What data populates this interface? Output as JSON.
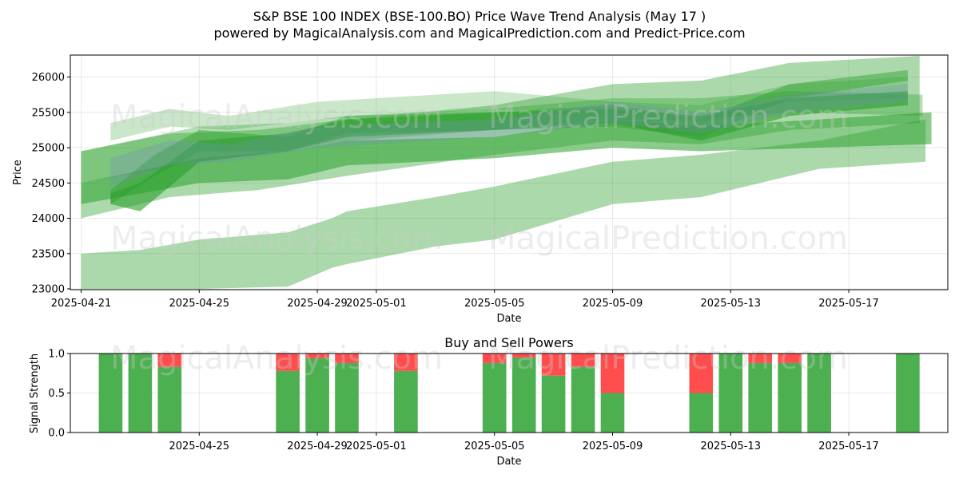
{
  "header": {
    "title": "S&P BSE 100 INDEX (BSE-100.BO) Price Wave Trend Analysis (May 17 )",
    "subtitle": "powered by MagicalAnalysis.com and MagicalPrediction.com and Predict-Price.com"
  },
  "watermarks": {
    "left": "MagicalAnalysis.com",
    "right": "MagicalPrediction.com"
  },
  "colors": {
    "band_green": "#2ca02c",
    "band_blue": "#6f8fb8",
    "buy": "#4caf50",
    "sell": "#ff4d4d"
  },
  "chart_data": [
    {
      "type": "area",
      "title": "",
      "xlabel": "Date",
      "ylabel": "Price",
      "x_start": "2025-04-21",
      "x_end": "2025-05-20",
      "ylim": [
        23000,
        26300
      ],
      "x_ticks": [
        "2025-04-21",
        "2025-04-25",
        "2025-04-29",
        "2025-05-01",
        "2025-05-05",
        "2025-05-09",
        "2025-05-13",
        "2025-05-17"
      ],
      "y_ticks": [
        23000,
        23500,
        24000,
        24500,
        25000,
        25500,
        26000
      ],
      "grid": true,
      "series": [
        {
          "upper": [
            [
              0.0,
              24950
            ],
            [
              4.0,
              25300
            ],
            [
              7.0,
              25350
            ],
            [
              9.0,
              25450
            ],
            [
              14.0,
              25550
            ],
            [
              18.0,
              25700
            ],
            [
              21.0,
              25700
            ],
            [
              24.0,
              25800
            ],
            [
              28.5,
              25750
            ]
          ],
          "lower": [
            [
              0.0,
              24500
            ],
            [
              4.0,
              24800
            ],
            [
              7.0,
              24950
            ],
            [
              9.0,
              25100
            ],
            [
              14.0,
              25250
            ],
            [
              18.0,
              25400
            ],
            [
              21.0,
              25400
            ],
            [
              24.0,
              25500
            ],
            [
              28.5,
              25450
            ]
          ],
          "opacity": 0.35
        },
        {
          "upper": [
            [
              0.0,
              24500
            ],
            [
              4.0,
              24850
            ],
            [
              7.0,
              24950
            ],
            [
              9.0,
              25100
            ],
            [
              14.0,
              25150
            ],
            [
              18.0,
              25400
            ],
            [
              21.0,
              25300
            ],
            [
              25.0,
              25400
            ],
            [
              28.8,
              25500
            ]
          ],
          "lower": [
            [
              0.0,
              24200
            ],
            [
              4.0,
              24500
            ],
            [
              7.0,
              24550
            ],
            [
              9.0,
              24750
            ],
            [
              14.0,
              24850
            ],
            [
              18.0,
              25000
            ],
            [
              21.0,
              24950
            ],
            [
              25.0,
              25000
            ],
            [
              28.8,
              25050
            ]
          ],
          "opacity": 0.55
        },
        {
          "upper": [
            [
              0.0,
              23500
            ],
            [
              2.0,
              23550
            ],
            [
              4.0,
              23700
            ],
            [
              7.0,
              23800
            ],
            [
              8.5,
              24000
            ],
            [
              9.0,
              24100
            ],
            [
              12.0,
              24300
            ],
            [
              14.0,
              24450
            ],
            [
              18.0,
              24800
            ],
            [
              21.0,
              24900
            ],
            [
              25.0,
              25100
            ],
            [
              28.6,
              25400
            ]
          ],
          "lower": [
            [
              0.0,
              23000
            ],
            [
              2.0,
              23000
            ],
            [
              4.0,
              23000
            ],
            [
              7.0,
              23030
            ],
            [
              8.5,
              23300
            ],
            [
              9.0,
              23350
            ],
            [
              12.0,
              23600
            ],
            [
              14.0,
              23700
            ],
            [
              18.0,
              24200
            ],
            [
              21.0,
              24300
            ],
            [
              25.0,
              24700
            ],
            [
              28.6,
              24800
            ]
          ],
          "opacity": 0.4
        },
        {
          "upper": [
            [
              0.0,
              24950
            ],
            [
              3.0,
              25200
            ],
            [
              6.0,
              25250
            ],
            [
              9.0,
              25400
            ],
            [
              14.0,
              25600
            ],
            [
              18.0,
              25900
            ],
            [
              21.0,
              25950
            ],
            [
              24.0,
              26200
            ],
            [
              28.4,
              26300
            ]
          ],
          "lower": [
            [
              0.0,
              24000
            ],
            [
              3.0,
              24300
            ],
            [
              6.0,
              24400
            ],
            [
              9.0,
              24600
            ],
            [
              14.0,
              24900
            ],
            [
              18.0,
              25100
            ],
            [
              21.0,
              25050
            ],
            [
              24.0,
              25250
            ],
            [
              28.4,
              25350
            ]
          ],
          "opacity": 0.4
        },
        {
          "upper": [
            [
              1.0,
              24350
            ],
            [
              2.0,
              24500
            ],
            [
              4.0,
              25100
            ],
            [
              7.0,
              25200
            ],
            [
              9.0,
              25400
            ],
            [
              14.0,
              25500
            ],
            [
              18.0,
              25550
            ],
            [
              21.0,
              25450
            ],
            [
              24.0,
              25700
            ],
            [
              28.0,
              25800
            ]
          ],
          "lower": [
            [
              1.0,
              24200
            ],
            [
              2.0,
              24100
            ],
            [
              4.0,
              24800
            ],
            [
              7.0,
              24950
            ],
            [
              9.0,
              25150
            ],
            [
              14.0,
              25250
            ],
            [
              18.0,
              25350
            ],
            [
              21.0,
              25100
            ],
            [
              24.0,
              25450
            ],
            [
              28.0,
              25600
            ]
          ],
          "opacity": 0.6
        },
        {
          "upper": [
            [
              1.0,
              25350
            ],
            [
              3.0,
              25550
            ],
            [
              5.0,
              25450
            ],
            [
              8.0,
              25650
            ],
            [
              14.0,
              25800
            ],
            [
              18.0,
              25650
            ],
            [
              21.0,
              25600
            ],
            [
              24.0,
              25900
            ],
            [
              28.0,
              26000
            ]
          ],
          "lower": [
            [
              1.0,
              25100
            ],
            [
              3.0,
              25300
            ],
            [
              5.0,
              25250
            ],
            [
              8.0,
              25400
            ],
            [
              14.0,
              25550
            ],
            [
              18.0,
              25400
            ],
            [
              21.0,
              25350
            ],
            [
              24.0,
              25650
            ],
            [
              28.0,
              25700
            ]
          ],
          "opacity": 0.25
        },
        {
          "upper": [
            [
              1.0,
              24400
            ],
            [
              2.5,
              24900
            ],
            [
              4.0,
              25250
            ],
            [
              7.0,
              25150
            ],
            [
              9.0,
              25450
            ],
            [
              14.0,
              25500
            ],
            [
              18.0,
              25600
            ],
            [
              21.0,
              25400
            ],
            [
              24.0,
              25900
            ],
            [
              28.0,
              26100
            ]
          ],
          "lower": [
            [
              1.0,
              24200
            ],
            [
              2.5,
              24600
            ],
            [
              4.0,
              24950
            ],
            [
              7.0,
              24950
            ],
            [
              9.0,
              25200
            ],
            [
              14.0,
              25250
            ],
            [
              18.0,
              25300
            ],
            [
              21.0,
              25150
            ],
            [
              24.0,
              25700
            ],
            [
              28.0,
              25950
            ]
          ],
          "opacity": 0.45
        },
        {
          "upper": [
            [
              1.0,
              24850
            ],
            [
              3.0,
              25100
            ],
            [
              5.0,
              25050
            ],
            [
              8.0,
              25300
            ],
            [
              14.0,
              25400
            ],
            [
              18.0,
              25650
            ],
            [
              21.0,
              25500
            ],
            [
              24.0,
              25750
            ],
            [
              28.0,
              25900
            ]
          ],
          "lower": [
            [
              1.0,
              24450
            ],
            [
              3.0,
              24750
            ],
            [
              5.0,
              24800
            ],
            [
              8.0,
              25000
            ],
            [
              14.0,
              25150
            ],
            [
              18.0,
              25350
            ],
            [
              21.0,
              25200
            ],
            [
              24.0,
              25500
            ],
            [
              28.0,
              25650
            ]
          ],
          "opacity": 0.3,
          "tint": "blue"
        }
      ]
    },
    {
      "type": "bar",
      "title": "Buy and Sell Powers",
      "xlabel": "Date",
      "ylabel": "Signal Strength",
      "ylim": [
        0,
        1
      ],
      "y_ticks": [
        0.0,
        0.5,
        1.0
      ],
      "x_ticks": [
        "2025-04-25",
        "2025-04-29",
        "2025-05-01",
        "2025-05-05",
        "2025-05-09",
        "2025-05-13",
        "2025-05-17"
      ],
      "grid": true,
      "categories": [
        "2025-04-22",
        "2025-04-23",
        "2025-04-24",
        "2025-04-28",
        "2025-04-29",
        "2025-04-30",
        "2025-05-02",
        "2025-05-05",
        "2025-05-06",
        "2025-05-07",
        "2025-05-08",
        "2025-05-09",
        "2025-05-12",
        "2025-05-13",
        "2025-05-14",
        "2025-05-15",
        "2025-05-16",
        "2025-05-19"
      ],
      "series": [
        {
          "name": "Buy",
          "values": [
            1.0,
            1.0,
            0.83,
            0.78,
            0.94,
            0.88,
            0.78,
            0.88,
            0.95,
            0.72,
            0.83,
            0.5,
            0.5,
            1.0,
            0.88,
            0.88,
            1.0,
            1.0
          ]
        },
        {
          "name": "Sell",
          "values": [
            0.0,
            0.0,
            0.17,
            0.22,
            0.06,
            0.12,
            0.22,
            0.12,
            0.05,
            0.28,
            0.17,
            0.5,
            0.5,
            0.0,
            0.12,
            0.12,
            0.0,
            0.0
          ]
        }
      ]
    }
  ]
}
